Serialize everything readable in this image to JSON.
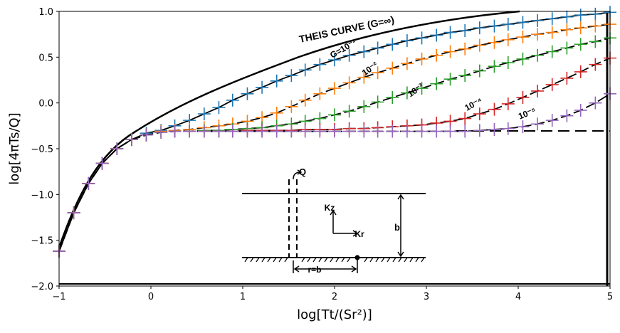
{
  "chart_data": {
    "type": "scatter",
    "x_label": "log[Tt/(Sr²)]",
    "y_label": "log[4πTs/Q]",
    "xlim": [
      -1,
      5
    ],
    "ylim": [
      -2,
      1
    ],
    "xticks": [
      {
        "value": -1,
        "label": "−1"
      },
      0,
      1,
      2,
      3,
      4,
      5
    ],
    "yticks": [
      {
        "value": 1,
        "label": "1.0"
      },
      0.5,
      {
        "value": 0,
        "label": "0.0"
      },
      {
        "value": -0.5,
        "label": "−0.5"
      },
      {
        "value": -1,
        "label": "−1.0"
      },
      {
        "value": -1.5,
        "label": "−1.5"
      },
      {
        "value": -2,
        "label": "−2.0"
      }
    ],
    "annotations": [
      "THEIS CURVE (G=∞)",
      "G=10⁻¹",
      "10⁻²",
      "10⁻³",
      "10⁻⁴",
      "10⁻⁵",
      "Q",
      "Kz",
      "Kr",
      "b",
      "r=b"
    ],
    "x": [
      -1,
      -0.84,
      -0.68,
      -0.53,
      -0.37,
      -0.21,
      -0.05,
      0.11,
      0.26,
      0.42,
      0.58,
      0.74,
      0.89,
      1.05,
      1.21,
      1.37,
      1.53,
      1.68,
      1.84,
      2.0,
      2.16,
      2.32,
      2.47,
      2.63,
      2.79,
      2.95,
      3.11,
      3.26,
      3.42,
      3.58,
      3.74,
      3.89,
      4.05,
      4.21,
      4.37,
      4.53,
      4.68,
      4.84,
      5.0
    ],
    "series": [
      {
        "color": "#1f77b4",
        "values": [
          -1.62,
          -1.2,
          -0.88,
          -0.66,
          -0.5,
          -0.4,
          -0.33,
          -0.3,
          -0.25,
          -0.19,
          -0.12,
          -0.05,
          0.03,
          0.1,
          0.17,
          0.24,
          0.3,
          0.36,
          0.42,
          0.47,
          0.52,
          0.56,
          0.6,
          0.64,
          0.68,
          0.71,
          0.74,
          0.77,
          0.79,
          0.82,
          0.84,
          0.86,
          0.88,
          0.9,
          0.92,
          0.94,
          0.96,
          0.97,
          0.99
        ]
      },
      {
        "color": "#ff7f0e",
        "values": [
          -1.62,
          -1.2,
          -0.88,
          -0.66,
          -0.5,
          -0.4,
          -0.35,
          -0.31,
          -0.3,
          -0.29,
          -0.27,
          -0.25,
          -0.23,
          -0.2,
          -0.16,
          -0.11,
          -0.04,
          0.03,
          0.1,
          0.16,
          0.22,
          0.28,
          0.33,
          0.38,
          0.43,
          0.48,
          0.52,
          0.56,
          0.59,
          0.63,
          0.66,
          0.69,
          0.72,
          0.75,
          0.77,
          0.8,
          0.82,
          0.84,
          0.86
        ]
      },
      {
        "color": "#2ca02c",
        "values": [
          -1.62,
          -1.2,
          -0.88,
          -0.66,
          -0.5,
          -0.4,
          -0.35,
          -0.32,
          -0.31,
          -0.31,
          -0.3,
          -0.3,
          -0.29,
          -0.28,
          -0.27,
          -0.25,
          -0.23,
          -0.2,
          -0.17,
          -0.13,
          -0.09,
          -0.04,
          0.01,
          0.06,
          0.11,
          0.16,
          0.21,
          0.26,
          0.3,
          0.35,
          0.4,
          0.44,
          0.48,
          0.52,
          0.56,
          0.6,
          0.64,
          0.67,
          0.71
        ]
      },
      {
        "color": "#d62728",
        "values": [
          -1.62,
          -1.2,
          -0.88,
          -0.66,
          -0.5,
          -0.4,
          -0.35,
          -0.32,
          -0.31,
          -0.31,
          -0.31,
          -0.31,
          -0.31,
          -0.3,
          -0.3,
          -0.3,
          -0.3,
          -0.29,
          -0.29,
          -0.29,
          -0.28,
          -0.28,
          -0.27,
          -0.26,
          -0.25,
          -0.24,
          -0.22,
          -0.2,
          -0.17,
          -0.12,
          -0.07,
          -0.01,
          0.06,
          0.13,
          0.2,
          0.27,
          0.34,
          0.42,
          0.49
        ]
      },
      {
        "color": "#9467bd",
        "values": [
          -1.62,
          -1.2,
          -0.88,
          -0.66,
          -0.5,
          -0.4,
          -0.35,
          -0.32,
          -0.31,
          -0.31,
          -0.31,
          -0.31,
          -0.31,
          -0.31,
          -0.31,
          -0.31,
          -0.31,
          -0.31,
          -0.31,
          -0.31,
          -0.31,
          -0.31,
          -0.31,
          -0.31,
          -0.31,
          -0.31,
          -0.31,
          -0.31,
          -0.31,
          -0.3,
          -0.29,
          -0.28,
          -0.26,
          -0.23,
          -0.19,
          -0.14,
          -0.08,
          0.0,
          0.1
        ]
      }
    ]
  }
}
